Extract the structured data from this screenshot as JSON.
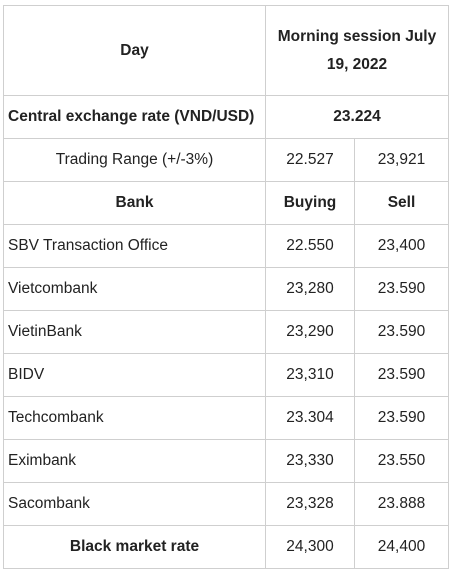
{
  "header": {
    "day_label": "Day",
    "session_label": "Morning session July 19, 2022"
  },
  "central": {
    "label": "Central exchange rate (VND/USD)",
    "value": "23.224"
  },
  "trading_range": {
    "label": "Trading Range (+/-3%)",
    "low": "22.527",
    "high": "23,921"
  },
  "columns": {
    "bank": "Bank",
    "buying": "Buying",
    "sell": "Sell"
  },
  "banks": [
    {
      "name": "SBV Transaction Office",
      "buying": "22.550",
      "sell": "23,400"
    },
    {
      "name": "Vietcombank",
      "buying": "23,280",
      "sell": "23.590"
    },
    {
      "name": "VietinBank",
      "buying": "23,290",
      "sell": "23.590"
    },
    {
      "name": "BIDV",
      "buying": "23,310",
      "sell": "23.590"
    },
    {
      "name": "Techcombank",
      "buying": "23.304",
      "sell": "23.590"
    },
    {
      "name": "Eximbank",
      "buying": "23,330",
      "sell": "23.550"
    },
    {
      "name": "Sacombank",
      "buying": "23,328",
      "sell": "23.888"
    }
  ],
  "black_market": {
    "label": "Black market rate",
    "buying": "24,300",
    "sell": "24,400"
  }
}
